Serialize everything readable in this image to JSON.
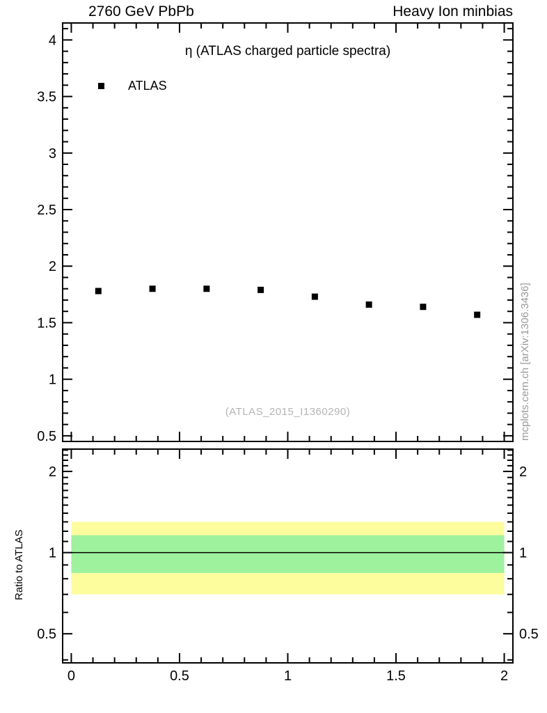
{
  "page": {
    "background": "#ffffff"
  },
  "header": {
    "left": "2760 GeV PbPb",
    "right": "Heavy Ion minbias"
  },
  "side_credit": "mcplots.cern.ch [arXiv:1306.3436]",
  "chart_data": {
    "type": "scatter",
    "title": "η (ATLAS charged particle spectra)",
    "watermark": "(ATLAS_2015_I1360290)",
    "legend": [
      {
        "label": "ATLAS",
        "marker": "filled-square",
        "color": "#000000"
      }
    ],
    "x_axis": {
      "lim": [
        -0.04,
        2.04
      ],
      "ticks": [
        0,
        0.5,
        1,
        1.5,
        2
      ],
      "tick_labels": [
        "0",
        "0.5",
        "1",
        "1.5",
        "2"
      ],
      "minor_step": 0.1
    },
    "main_panel": {
      "yscale": "linear",
      "ylim": [
        0.45,
        4.15
      ],
      "yticks": [
        0.5,
        1,
        1.5,
        2,
        2.5,
        3,
        3.5,
        4
      ],
      "ytick_labels": [
        "0.5",
        "1",
        "1.5",
        "2",
        "2.5",
        "3",
        "3.5",
        "4"
      ],
      "minor_y_step": 0.1,
      "series": [
        {
          "name": "ATLAS",
          "marker": "filled-square",
          "color": "#000000",
          "x": [
            0.125,
            0.375,
            0.625,
            0.875,
            1.125,
            1.375,
            1.625,
            1.875
          ],
          "y": [
            1.78,
            1.8,
            1.8,
            1.79,
            1.73,
            1.66,
            1.64,
            1.57
          ]
        }
      ]
    },
    "ratio_panel": {
      "ylabel": "Ratio to ATLAS",
      "yscale": "log",
      "ylim": [
        0.39,
        2.42
      ],
      "yticks": [
        0.5,
        1,
        2
      ],
      "ytick_labels": [
        "0.5",
        "1",
        "2"
      ],
      "minor_yticks": [
        0.4,
        0.6,
        0.7,
        0.8,
        0.9,
        1.1,
        1.2,
        1.3,
        1.4,
        1.5,
        1.6,
        1.7,
        1.8,
        1.9,
        2.1,
        2.2,
        2.3,
        2.4
      ],
      "reference_line": 1,
      "bands": [
        {
          "name": "outer-uncertainty-band",
          "color": "#fdfd9e",
          "lo": 0.7,
          "hi": 1.3,
          "x0": 0,
          "x1": 2
        },
        {
          "name": "inner-uncertainty-band",
          "color": "#9ef29e",
          "lo": 0.84,
          "hi": 1.16,
          "x0": 0,
          "x1": 2
        }
      ]
    }
  }
}
